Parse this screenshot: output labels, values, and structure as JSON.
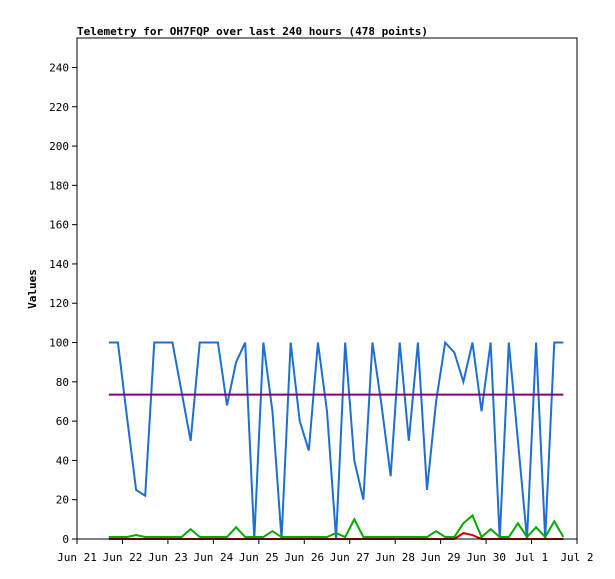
{
  "chart_data": {
    "type": "line",
    "title": "Telemetry for OH7FQP over last 240 hours (478 points)",
    "y_label": "Values",
    "x": [
      0.7,
      0.9,
      1.1,
      1.3,
      1.5,
      1.7,
      1.9,
      2.1,
      2.3,
      2.5,
      2.7,
      2.9,
      3.1,
      3.3,
      3.5,
      3.7,
      3.9,
      4.1,
      4.3,
      4.5,
      4.7,
      4.9,
      5.1,
      5.3,
      5.5,
      5.7,
      5.9,
      6.1,
      6.3,
      6.5,
      6.7,
      6.9,
      7.1,
      7.3,
      7.5,
      7.7,
      7.9,
      8.1,
      8.3,
      8.5,
      8.7,
      8.9,
      9.1,
      9.3,
      9.5,
      9.7,
      9.9,
      10.1,
      10.3,
      10.5,
      10.7
    ],
    "series": [
      {
        "color": "#1f6fcf",
        "values": [
          100,
          100,
          62,
          25,
          22,
          100,
          100,
          100,
          75,
          50,
          100,
          100,
          100,
          68,
          90,
          100,
          0,
          100,
          65,
          0,
          100,
          60,
          45,
          100,
          65,
          0,
          100,
          40,
          20,
          100,
          68,
          32,
          100,
          50,
          100,
          25,
          70,
          100,
          95,
          80,
          100,
          65,
          100,
          0,
          100,
          50,
          0,
          100,
          0,
          100,
          100
        ]
      },
      {
        "color": "#800080",
        "values": [
          73.5,
          73.5,
          73.5,
          73.5,
          73.5,
          73.5,
          73.5,
          73.5,
          73.5,
          73.5,
          73.5,
          73.5,
          73.5,
          73.5,
          73.5,
          73.5,
          73.5,
          73.5,
          73.5,
          73.5,
          73.5,
          73.5,
          73.5,
          73.5,
          73.5,
          73.5,
          73.5,
          73.5,
          73.5,
          73.5,
          73.5,
          73.5,
          73.5,
          73.5,
          73.5,
          73.5,
          73.5,
          73.5,
          73.5,
          73.5,
          73.5,
          73.5,
          73.5,
          73.5,
          73.5,
          73.5,
          73.5,
          73.5,
          73.5,
          73.5,
          73.5
        ]
      },
      {
        "color": "#00aa00",
        "values": [
          1,
          1,
          1,
          2,
          1,
          1,
          1,
          1,
          1,
          5,
          1,
          1,
          1,
          1,
          6,
          1,
          1,
          1,
          4,
          1,
          1,
          1,
          1,
          1,
          1,
          3,
          1,
          10,
          1,
          1,
          1,
          1,
          1,
          1,
          1,
          1,
          4,
          1,
          1,
          8,
          12,
          1,
          5,
          1,
          1,
          8,
          1,
          6,
          1,
          9,
          1
        ]
      },
      {
        "color": "#cc0000",
        "values": [
          0,
          0,
          0,
          0,
          0,
          0,
          0,
          0,
          0,
          0,
          0,
          0,
          0,
          0,
          0,
          0,
          0,
          0,
          0,
          0,
          0,
          0,
          0,
          0,
          0,
          0,
          0,
          0,
          0,
          0,
          0,
          0,
          0,
          0,
          0,
          0,
          0,
          0,
          0,
          3,
          2,
          0,
          0,
          0,
          0,
          0,
          0,
          0,
          0,
          0,
          0
        ]
      }
    ],
    "xlim": [
      0,
      11
    ],
    "xticks": [
      {
        "value": 0,
        "label": "Jun 21"
      },
      {
        "value": 1,
        "label": "Jun 22"
      },
      {
        "value": 2,
        "label": "Jun 23"
      },
      {
        "value": 3,
        "label": "Jun 24"
      },
      {
        "value": 4,
        "label": "Jun 25"
      },
      {
        "value": 5,
        "label": "Jun 26"
      },
      {
        "value": 6,
        "label": "Jun 27"
      },
      {
        "value": 7,
        "label": "Jun 28"
      },
      {
        "value": 8,
        "label": "Jun 29"
      },
      {
        "value": 9,
        "label": "Jun 30"
      },
      {
        "value": 10,
        "label": "Jul 1"
      },
      {
        "value": 11,
        "label": "Jul 2"
      }
    ],
    "ylim": [
      0,
      255
    ],
    "yticks": [
      0,
      20,
      40,
      60,
      80,
      100,
      120,
      140,
      160,
      180,
      200,
      220,
      240
    ]
  }
}
